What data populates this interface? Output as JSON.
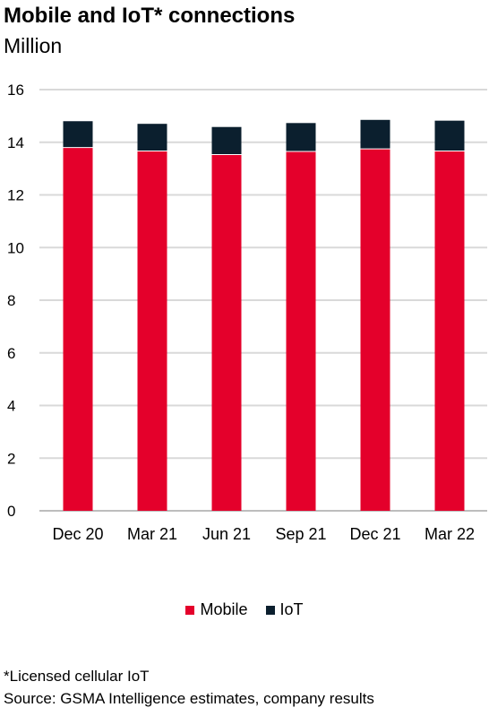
{
  "chart_data": {
    "type": "bar",
    "stacked": true,
    "title": "Mobile and IoT* connections",
    "subtitle": "Million",
    "categories": [
      "Dec 20",
      "Mar 21",
      "Jun 21",
      "Sep 21",
      "Dec 21",
      "Mar 22"
    ],
    "series": [
      {
        "name": "Mobile",
        "color": "#e4002b",
        "values": [
          13.8,
          13.67,
          13.53,
          13.65,
          13.75,
          13.67
        ]
      },
      {
        "name": "IoT",
        "color": "#0b1f2e",
        "values": [
          1.0,
          1.03,
          1.05,
          1.08,
          1.1,
          1.15
        ]
      }
    ],
    "ylim": [
      0,
      16
    ],
    "yticks": [
      0,
      2,
      4,
      6,
      8,
      10,
      12,
      14,
      16
    ],
    "grid": true,
    "legend_position": "bottom"
  },
  "footnote": "*Licensed cellular IoT",
  "source": "Source: GSMA Intelligence estimates, company results"
}
